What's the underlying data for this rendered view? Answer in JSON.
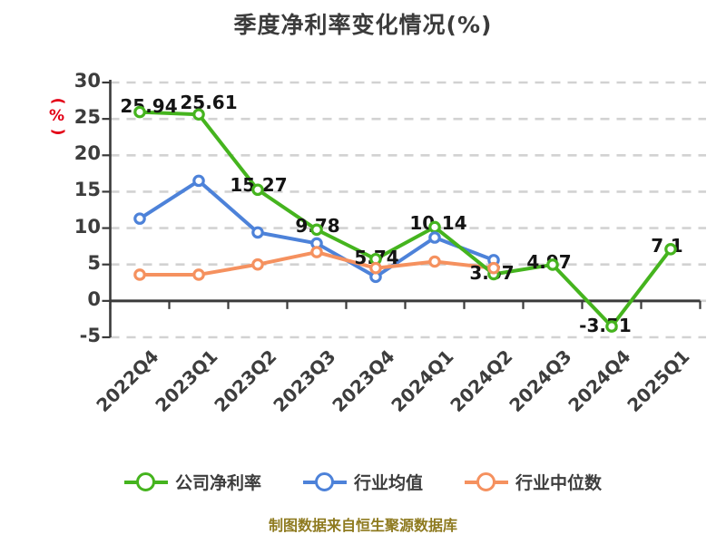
{
  "title": "季度净利率变化情况(%)",
  "footer": {
    "text": "制图数据来自恒生聚源数据库"
  },
  "colors": {
    "title": "#3b3b3b",
    "axis": "#3a3a3a",
    "grid": "#d2d2d2",
    "tick_label": "#3d3d3d",
    "data_label": "#141414",
    "y_axis_name": "#e30016",
    "footer": "#8e7a1f"
  },
  "chart_data": {
    "type": "line",
    "title": "季度净利率变化情况(%)",
    "ylabel": "(%)",
    "xlabel": "",
    "grid": true,
    "gridline_style": "dashed",
    "legend_position": "bottom",
    "ylim": [
      -5,
      30
    ],
    "y_ticks": [
      30,
      25,
      20,
      15,
      10,
      5,
      0,
      -5
    ],
    "categories": [
      "2022Q4",
      "2023Q1",
      "2023Q2",
      "2023Q3",
      "2023Q4",
      "2024Q1",
      "2024Q2",
      "2024Q3",
      "2024Q4",
      "2025Q1"
    ],
    "series": [
      {
        "name": "公司净利率",
        "color": "#45b41e",
        "values": [
          25.94,
          25.61,
          15.27,
          9.78,
          5.74,
          10.14,
          3.67,
          4.97,
          -3.51,
          7.1
        ],
        "point_labels": [
          "25.94",
          "25.61",
          "15.27",
          "9.78",
          "5.74",
          "10.14",
          "3.67",
          "4.97",
          "-3.51",
          "7.1"
        ]
      },
      {
        "name": "行业均值",
        "color": "#4d82d9",
        "values": [
          11.3,
          16.5,
          9.4,
          7.9,
          3.3,
          8.7,
          5.6
        ]
      },
      {
        "name": "行业中位数",
        "color": "#f5915f",
        "values": [
          3.6,
          3.6,
          5.0,
          6.7,
          4.5,
          5.4,
          4.5
        ]
      }
    ]
  }
}
